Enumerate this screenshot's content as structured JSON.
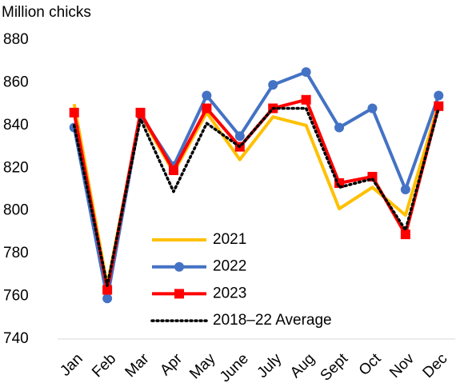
{
  "chart_data": {
    "type": "line",
    "y_label": "Million chicks",
    "categories": [
      "Jan",
      "Feb",
      "Mar",
      "Apr",
      "May",
      "June",
      "July",
      "Aug",
      "Sept",
      "Oct",
      "Nov",
      "Dec"
    ],
    "series": [
      {
        "name": "2021",
        "color": "#ffc000",
        "marker": "none",
        "dash": "solid",
        "values": [
          850,
          765,
          845,
          818,
          846,
          824,
          844,
          840,
          801,
          811,
          798,
          850
        ]
      },
      {
        "name": "2022",
        "color": "#4472c4",
        "marker": "circle",
        "dash": "solid",
        "values": [
          839,
          759,
          845,
          821,
          854,
          835,
          859,
          865,
          839,
          848,
          810,
          854
        ]
      },
      {
        "name": "2023",
        "color": "#ff0000",
        "marker": "square",
        "dash": "solid",
        "values": [
          846,
          763,
          846,
          819,
          848,
          830,
          848,
          852,
          813,
          816,
          789,
          849
        ]
      },
      {
        "name": "2018–22 Average",
        "color": "#000000",
        "marker": "none",
        "dash": "dotted",
        "values": [
          840,
          765,
          843,
          809,
          841,
          830,
          848,
          848,
          811,
          815,
          791,
          848
        ]
      }
    ],
    "ylim": [
      740,
      880
    ],
    "yticks": [
      740,
      760,
      780,
      800,
      820,
      840,
      860,
      880
    ],
    "grid": false
  }
}
